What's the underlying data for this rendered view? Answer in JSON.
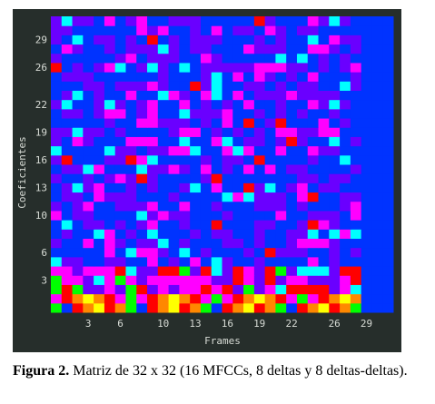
{
  "chart_data": {
    "type": "heatmap",
    "xlabel": "Frames",
    "ylabel": "Coeficientes",
    "x_ticks": [
      3,
      6,
      10,
      13,
      16,
      19,
      22,
      26,
      29
    ],
    "y_ticks": [
      3,
      6,
      10,
      13,
      16,
      19,
      22,
      26,
      29
    ],
    "n_rows": 32,
    "n_cols": 32,
    "grid": false,
    "colormap": [
      "#0033ff",
      "#6a00ff",
      "#ff00ff",
      "#ff0000",
      "#ff8800",
      "#ffff00",
      "#00ff00",
      "#00ffff"
    ]
  },
  "caption": {
    "label": "Figura 2.",
    "text": "Matriz de 32 x 32 (16 MFCCs, 8 deltas y 8 deltas-deltas)."
  }
}
